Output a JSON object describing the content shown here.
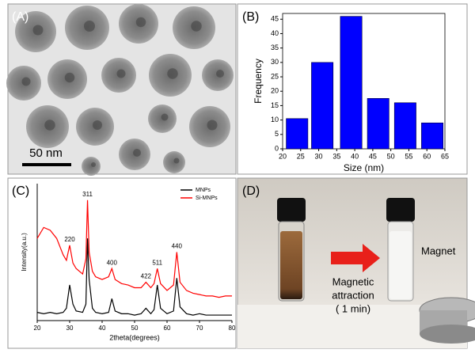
{
  "panel_labels": [
    "(A)",
    "(B)",
    "(C)",
    "(D)"
  ],
  "panel_a": {
    "scale_bar": "50 nm"
  },
  "panel_d": {
    "arrow_label": [
      "Magnetic",
      "attraction",
      "( 1 min)"
    ],
    "magnet_label": "Magnet"
  },
  "chart_data": [
    {
      "type": "bar",
      "y_label": "Frequency",
      "x_label": "Size (nm)",
      "x": [
        24,
        31,
        39,
        46.5,
        54,
        61.5
      ],
      "values": [
        10.5,
        30,
        46,
        17.5,
        16,
        9
      ],
      "color": "#0000ff",
      "xlim": [
        20,
        65
      ],
      "xticks": [
        20,
        25,
        30,
        35,
        40,
        45,
        50,
        55,
        60,
        65
      ],
      "ylim": [
        0,
        47
      ],
      "yticks": [
        0,
        5,
        10,
        15,
        20,
        25,
        30,
        35,
        40,
        45
      ]
    },
    {
      "type": "line",
      "y_label": "Intensity(a.u.)",
      "x_label": "2theta(degrees)",
      "x": [
        20,
        22,
        24,
        26,
        28,
        29,
        30,
        31,
        32,
        34,
        35,
        35.5,
        36,
        37,
        38,
        40,
        42,
        43,
        44,
        46,
        48,
        50,
        52,
        53.5,
        55,
        56,
        57,
        58,
        60,
        62,
        63,
        64,
        66,
        68,
        70,
        72,
        74,
        76,
        78,
        80
      ],
      "series": [
        {
          "name": "MNPs",
          "color": "#000000",
          "values": [
            6,
            5,
            6,
            5,
            6,
            9,
            26,
            12,
            7,
            6,
            12,
            60,
            30,
            9,
            6,
            5,
            6,
            16,
            7,
            5,
            5,
            4,
            5,
            9,
            5,
            8,
            26,
            9,
            5,
            7,
            31,
            10,
            5,
            4,
            5,
            4,
            4,
            4,
            4,
            4
          ]
        },
        {
          "name": "Si-MNPs",
          "color": "#ff0000",
          "values": [
            60,
            68,
            66,
            60,
            48,
            44,
            55,
            42,
            38,
            34,
            45,
            88,
            50,
            36,
            32,
            30,
            32,
            38,
            30,
            27,
            26,
            24,
            24,
            28,
            24,
            27,
            38,
            27,
            22,
            26,
            50,
            28,
            22,
            20,
            19,
            18,
            18,
            17,
            18,
            18
          ]
        }
      ],
      "annotations": [
        {
          "text": "220",
          "x": 30
        },
        {
          "text": "311",
          "x": 35.5
        },
        {
          "text": "400",
          "x": 43
        },
        {
          "text": "422",
          "x": 53.5
        },
        {
          "text": "511",
          "x": 57
        },
        {
          "text": "440",
          "x": 63
        }
      ],
      "xlim": [
        20,
        80
      ],
      "xticks": [
        20,
        30,
        40,
        50,
        60,
        70,
        80
      ],
      "ylim": [
        0,
        100
      ]
    }
  ]
}
